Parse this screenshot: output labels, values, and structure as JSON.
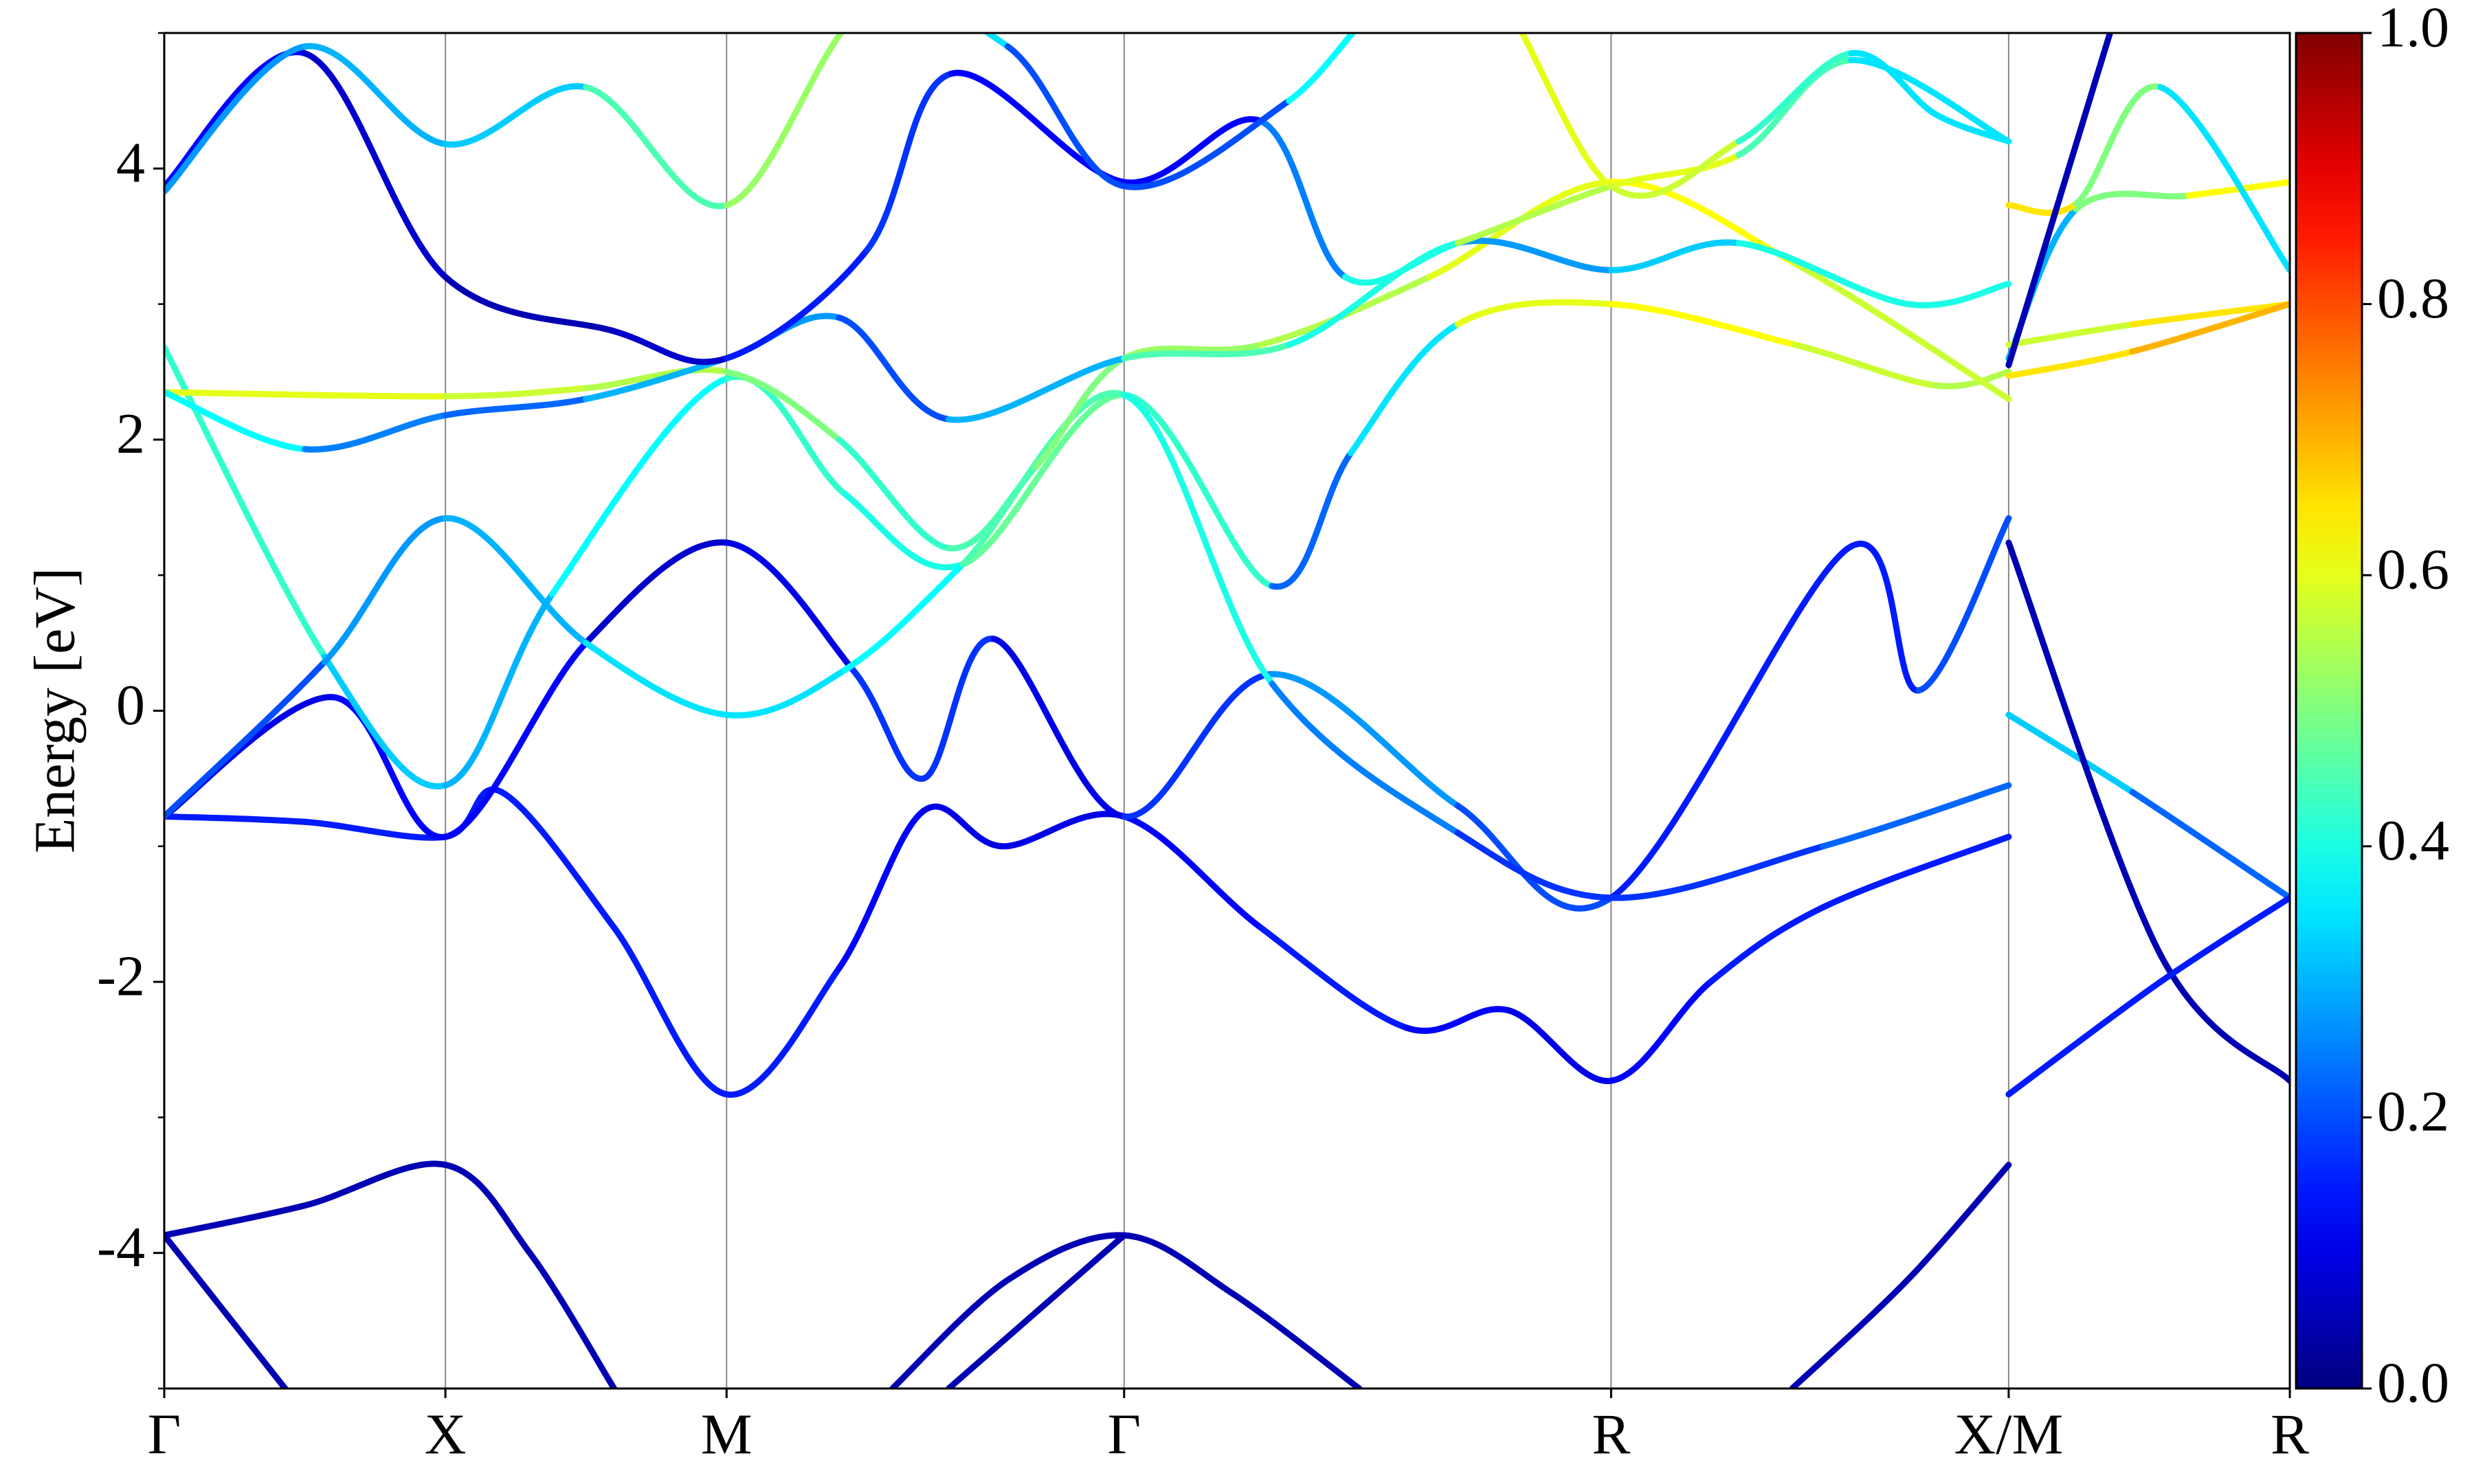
{
  "chart_data": {
    "type": "bandstructure",
    "ylabel": "Energy [eV]",
    "xlim": [
      0,
      7.56
    ],
    "ylim": [
      -5,
      5
    ],
    "xticks": [
      {
        "value": 0,
        "label": "Γ"
      },
      {
        "value": 1,
        "label": "X"
      },
      {
        "value": 2,
        "label": "M"
      },
      {
        "value": 3.414,
        "label": "Γ"
      },
      {
        "value": 5.146,
        "label": "R"
      },
      {
        "value": 6.56,
        "label": "X/M"
      },
      {
        "value": 7.56,
        "label": "R"
      }
    ],
    "yticks": [
      -4,
      -2,
      0,
      2,
      4
    ],
    "yminorticks": [
      -5,
      -3,
      -1,
      1,
      3,
      5
    ],
    "grid": "x",
    "colormap": "jet",
    "colorbar": {
      "lim": [
        0,
        1
      ],
      "ticks": [
        {
          "value": 0,
          "label": "0.0"
        },
        {
          "value": 0.2,
          "label": "0.2"
        },
        {
          "value": 0.4,
          "label": "0.4"
        },
        {
          "value": 0.6,
          "label": "0.6"
        },
        {
          "value": 0.8,
          "label": "0.8"
        },
        {
          "value": 1,
          "label": "1.0"
        }
      ]
    },
    "series": [
      {
        "x": [
          0,
          0.5,
          1,
          1.3,
          1.6,
          null,
          2.59,
          3.0,
          3.414,
          3.8,
          4.25,
          null,
          5.79,
          6.2,
          6.56
        ],
        "values": [
          -3.87,
          -3.65,
          -3.35,
          -4.0,
          -5,
          null,
          -5,
          -4.2,
          -3.87,
          -4.3,
          -5,
          null,
          -5,
          -4.2,
          -3.35
        ],
        "weights": [
          0.05,
          0.05,
          0.05,
          0.05,
          0.05,
          null,
          0.05,
          0.05,
          0.05,
          0.05,
          0.05,
          null,
          0.05,
          0.05,
          0.05
        ]
      },
      {
        "x": [
          0,
          0.43,
          null,
          2.79,
          3.414
        ],
        "values": [
          -3.87,
          -5,
          null,
          -5,
          -3.87
        ],
        "weights": [
          0.05,
          0.05,
          null,
          0.05,
          0.05
        ]
      },
      {
        "x": [
          0,
          0.5,
          1,
          1.2,
          1.6,
          2,
          2.4,
          2.7,
          2.98,
          3.414,
          3.9,
          4.42,
          4.78,
          5.146,
          5.5,
          5.9,
          6.56
        ],
        "values": [
          -0.78,
          -0.82,
          -0.93,
          -0.6,
          -1.6,
          -2.83,
          -1.9,
          -0.74,
          -1.0,
          -0.78,
          -1.6,
          -2.34,
          -2.21,
          -2.73,
          -2.0,
          -1.45,
          -0.93
        ],
        "weights": [
          0.15,
          0.15,
          0.15,
          0.15,
          0.15,
          0.15,
          0.15,
          0.1,
          0.1,
          0.1,
          0.15,
          0.15,
          0.1,
          0.1,
          0.15,
          0.15,
          0.15
        ]
      },
      {
        "x": [
          0,
          0.6,
          1,
          1.5,
          2,
          2.45,
          2.7,
          2.95,
          3.414,
          3.94,
          4.6,
          5.146,
          5.99,
          6.24,
          6.56
        ],
        "values": [
          -0.78,
          0.1,
          -0.93,
          0.5,
          1.24,
          0.3,
          -0.5,
          0.53,
          -0.78,
          0.27,
          -0.7,
          -1.38,
          1.2,
          0.15,
          1.42
        ],
        "weights": [
          0.1,
          0.1,
          0.15,
          0.1,
          0.05,
          0.15,
          0.2,
          0.15,
          0.05,
          0.3,
          0.25,
          0.15,
          0.15,
          0.15,
          0.25
        ]
      },
      {
        "x": [
          0,
          0.57,
          1,
          1.38,
          2,
          2.42,
          2.84,
          3.414,
          3.94,
          4.22,
          4.6,
          5.146,
          5.8,
          6.3,
          6.56
        ],
        "values": [
          2.68,
          0.4,
          -0.55,
          0.86,
          2.45,
          1.6,
          1.08,
          2.33,
          0.92,
          1.9,
          2.85,
          3.0,
          2.7,
          2.4,
          2.5
        ],
        "weights": [
          0.5,
          0.35,
          0.3,
          0.3,
          0.45,
          0.4,
          0.4,
          0.55,
          0.3,
          0.15,
          0.55,
          0.65,
          0.6,
          0.55,
          0.55
        ]
      },
      {
        "x": [
          0,
          0.57,
          1,
          1.5,
          2,
          2.42,
          2.84,
          3.414,
          3.94,
          4.6,
          5.146,
          5.9,
          6.56
        ],
        "values": [
          -0.78,
          0.36,
          1.42,
          0.5,
          -0.03,
          0.3,
          1.08,
          2.33,
          0.2,
          -0.9,
          -1.38,
          -1.0,
          -0.55
        ],
        "weights": [
          0.1,
          0.3,
          0.25,
          0.35,
          0.35,
          0.35,
          0.4,
          0.5,
          0.3,
          0.2,
          0.15,
          0.2,
          0.25
        ]
      },
      {
        "x": [
          0,
          1,
          1.5,
          2,
          2.4,
          2.79,
          3.1,
          3.414,
          3.9,
          4.5,
          5.146,
          5.8,
          6.56
        ],
        "values": [
          2.35,
          2.32,
          2.38,
          2.5,
          2.0,
          1.2,
          1.8,
          2.6,
          2.7,
          3.2,
          3.9,
          3.3,
          2.3
        ],
        "weights": [
          0.6,
          0.6,
          0.55,
          0.55,
          0.45,
          0.4,
          0.5,
          0.5,
          0.55,
          0.55,
          0.65,
          0.6,
          0.55
        ]
      },
      {
        "x": [
          0,
          0.5,
          1,
          1.5,
          2,
          2.4,
          2.79,
          3.414,
          4.0,
          4.6,
          5.146,
          5.6,
          6.2,
          6.56
        ],
        "values": [
          2.35,
          1.93,
          2.18,
          2.3,
          2.6,
          2.9,
          2.15,
          2.6,
          2.7,
          3.45,
          3.25,
          3.45,
          3.0,
          3.15
        ],
        "weights": [
          0.45,
          0.3,
          0.2,
          0.25,
          0.35,
          0.2,
          0.2,
          0.4,
          0.5,
          0.3,
          0.25,
          0.4,
          0.4,
          0.4
        ]
      },
      {
        "x": [
          0,
          0.5,
          1,
          1.6,
          2,
          2.5,
          2.8,
          3.414,
          3.9,
          4.2,
          4.6,
          5.146,
          5.6,
          6.0,
          6.56
        ],
        "values": [
          3.87,
          4.85,
          3.2,
          2.8,
          2.6,
          3.4,
          4.7,
          3.9,
          4.35,
          3.2,
          3.45,
          3.87,
          4.1,
          4.8,
          4.2
        ],
        "weights": [
          0.15,
          0.1,
          0.05,
          0.05,
          0.1,
          0.2,
          0.15,
          0.1,
          0.15,
          0.35,
          0.45,
          0.65,
          0.55,
          0.35,
          0.35
        ]
      },
      {
        "x": [
          0,
          0.5,
          1,
          1.5,
          2,
          2.5,
          3.0,
          3.414,
          4.0,
          4.6,
          5.146,
          5.6,
          6.0,
          6.3,
          6.56
        ],
        "values": [
          3.83,
          4.9,
          4.18,
          4.6,
          3.73,
          5.2,
          4.9,
          3.87,
          4.5,
          5.6,
          3.87,
          4.2,
          4.85,
          4.4,
          4.2
        ],
        "weights": [
          0.25,
          0.3,
          0.3,
          0.35,
          0.55,
          0.5,
          0.2,
          0.2,
          0.2,
          0.55,
          0.65,
          0.5,
          0.35,
          0.35,
          0.35
        ]
      },
      {
        "x": [
          6.56,
          7.0,
          7.56
        ],
        "values": [
          -0.03,
          -0.6,
          -1.38
        ],
        "weights": [
          0.35,
          0.3,
          0.15
        ]
      },
      {
        "x": [
          6.56,
          7.1,
          7.56
        ],
        "values": [
          1.24,
          -1.8,
          -2.73
        ],
        "weights": [
          0.05,
          0.05,
          0.05
        ]
      },
      {
        "x": [
          6.56,
          7.1,
          7.56
        ],
        "values": [
          -2.83,
          -2.0,
          -1.38
        ],
        "weights": [
          0.15,
          0.15,
          0.15
        ]
      },
      {
        "x": [
          6.56,
          6.8,
          7.2,
          7.56
        ],
        "values": [
          2.6,
          3.7,
          3.8,
          3.9
        ],
        "weights": [
          0.2,
          0.4,
          0.6,
          0.65
        ]
      },
      {
        "x": [
          6.56,
          6.8,
          7.1,
          7.56
        ],
        "values": [
          3.73,
          3.74,
          4.6,
          3.25
        ],
        "weights": [
          0.65,
          0.65,
          0.35,
          0.35
        ]
      },
      {
        "x": [
          6.56,
          7.0,
          7.56
        ],
        "values": [
          2.7,
          2.85,
          3.0
        ],
        "weights": [
          0.55,
          0.6,
          0.7
        ]
      },
      {
        "x": [
          6.56,
          7.0,
          7.56
        ],
        "values": [
          2.47,
          2.65,
          3.0
        ],
        "weights": [
          0.65,
          0.65,
          0.75
        ]
      },
      {
        "x": [
          6.56,
          6.95
        ],
        "values": [
          2.55,
          5.2
        ],
        "weights": [
          0.05,
          0.05
        ]
      }
    ]
  }
}
